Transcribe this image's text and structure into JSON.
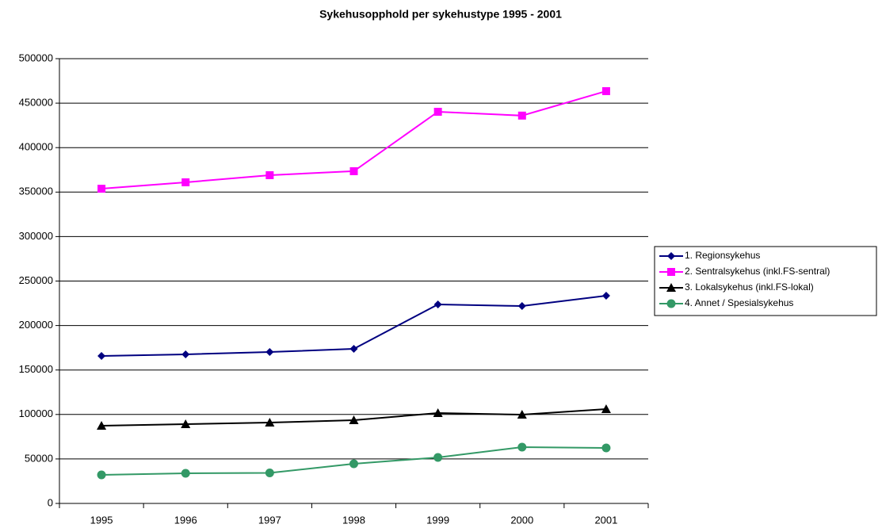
{
  "chart_data": {
    "type": "line",
    "title": "Sykehusopphold per sykehustype 1995 - 2001",
    "categories": [
      "1995",
      "1996",
      "1997",
      "1998",
      "1999",
      "2000",
      "2001"
    ],
    "series": [
      {
        "name": "1. Regionsykehus",
        "color": "#000080",
        "marker": "diamond",
        "values": [
          165800,
          167600,
          170200,
          173800,
          223700,
          221900,
          233500
        ]
      },
      {
        "name": "2. Sentralsykehus (inkl.FS-sentral)",
        "color": "#ff00ff",
        "marker": "square",
        "values": [
          353800,
          361000,
          369000,
          373500,
          440300,
          436000,
          463500
        ]
      },
      {
        "name": "3. Lokalsykehus (inkl.FS-lokal)",
        "color": "#000000",
        "marker": "triangle",
        "values": [
          87300,
          89100,
          90900,
          93600,
          101600,
          99800,
          106100
        ]
      },
      {
        "name": "4. Annet / Spesialsykehus",
        "color": "#339966",
        "marker": "circle",
        "values": [
          32100,
          33900,
          34300,
          44600,
          51700,
          63300,
          62400
        ]
      }
    ],
    "ylim": [
      0,
      500000
    ],
    "yticks": [
      0,
      50000,
      100000,
      150000,
      200000,
      250000,
      300000,
      350000,
      400000,
      450000,
      500000
    ],
    "grid": true,
    "legend": "right"
  }
}
